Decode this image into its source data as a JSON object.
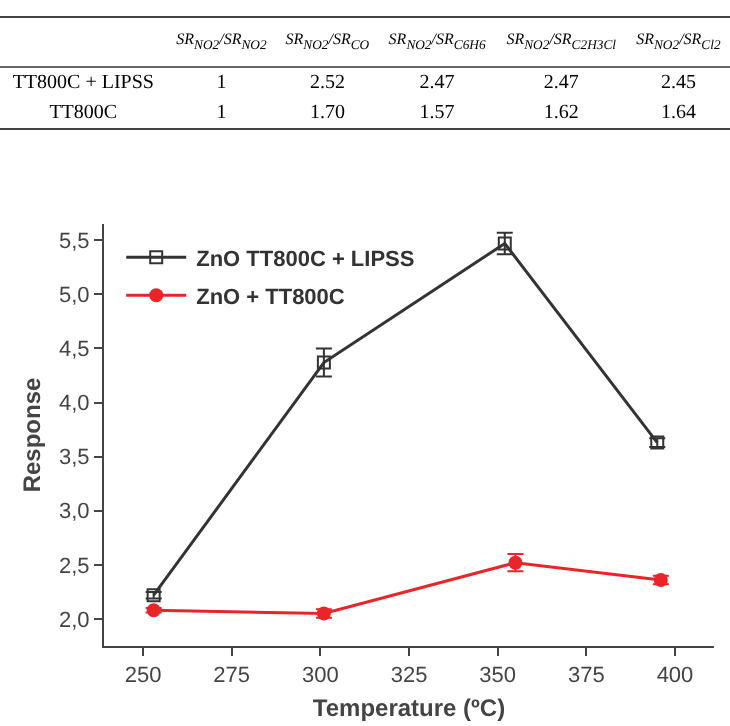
{
  "chart_data": [
    {
      "type": "other",
      "categories": [
        "SR$_{NO2}$/SR$_{NO2}$",
        "SR$_{NO2}$/SR$_{CO}$",
        "SR$_{NO2}$/SR$_{C6H6}$",
        "SR$_{NO2}$/SR$_{C2H3Cl}$",
        "SR$_{NO2}$/SR$_{Cl2}$"
      ],
      "y_categories": [
        "TT800C + LIPSS",
        "TT800C"
      ],
      "cells": [
        [
          "1",
          "2.52",
          "2.47",
          "2.47",
          "2.45"
        ],
        [
          "1",
          "1.70",
          "1.57",
          "1.62",
          "1.64"
        ]
      ]
    },
    {
      "type": "line",
      "xlabel": "Temperature (ºC)",
      "ylabel": "Response",
      "xlim": [
        239,
        411
      ],
      "xticks": [
        250,
        275,
        300,
        325,
        350,
        375,
        400
      ],
      "ylim": [
        1.75,
        5.65
      ],
      "yticks": [
        {
          "value": 2,
          "label": "2,0"
        },
        {
          "value": 2.5,
          "label": "2,5"
        },
        {
          "value": 3,
          "label": "3,0"
        },
        {
          "value": 3.5,
          "label": "3,5"
        },
        {
          "value": 4,
          "label": "4,0"
        },
        {
          "value": 4.5,
          "label": "4,5"
        },
        {
          "value": 5,
          "label": "5,0"
        },
        {
          "value": 5.5,
          "label": "5,5"
        }
      ],
      "grid": false,
      "legend": "top left",
      "line_style": "solid",
      "series": [
        {
          "name": "ZnO TT800C + LIPSS",
          "color": "#333333",
          "marker": "square",
          "x": [
            253,
            301,
            352,
            395
          ],
          "values": [
            2.22,
            4.37,
            5.47,
            3.63
          ],
          "errors": [
            0.03,
            0.13,
            0.1,
            0.04
          ]
        },
        {
          "name": "ZnO + TT800C",
          "color": "#e8262a",
          "marker": "circle",
          "x": [
            253,
            301,
            355,
            396
          ],
          "values": [
            2.08,
            2.05,
            2.52,
            2.36
          ],
          "errors": [
            0.02,
            0.04,
            0.08,
            0.04
          ]
        }
      ]
    }
  ]
}
